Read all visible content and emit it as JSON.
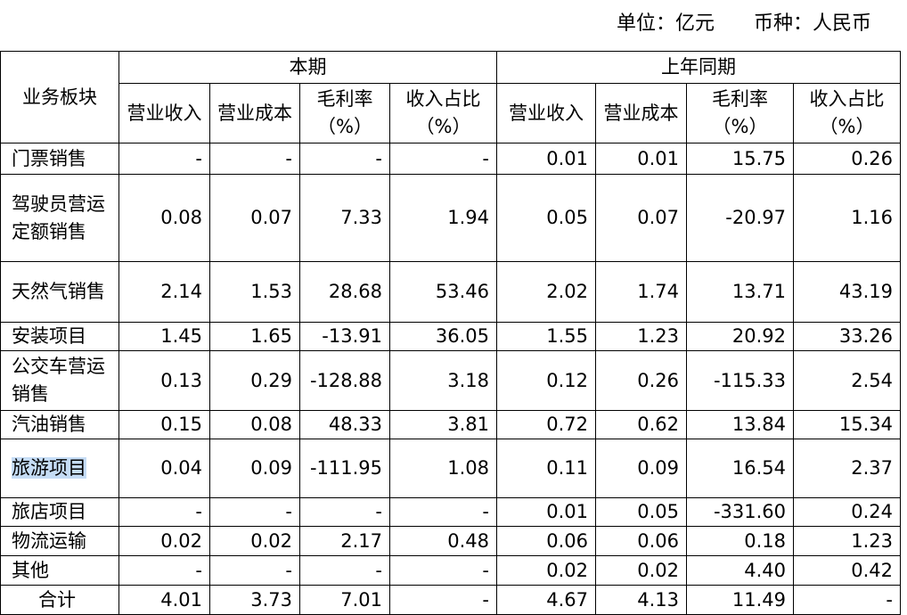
{
  "header": {
    "unit": "单位：亿元　　币种：人民币"
  },
  "table": {
    "corner": "业务板块",
    "groups": [
      {
        "name": "本期",
        "columns": [
          "营业收入",
          "营业成本",
          "毛利率（%）",
          "收入占比（%）"
        ]
      },
      {
        "name": "上年同期",
        "columns": [
          "营业收入",
          "营业成本",
          "毛利率（%）",
          "收入占比（%）"
        ]
      }
    ],
    "rows": [
      [
        "门票销售",
        "-",
        "-",
        "-",
        "-",
        "0.01",
        "0.01",
        "15.75",
        "0.26"
      ],
      [
        "驾驶员营运定额销售",
        "0.08",
        "0.07",
        "7.33",
        "1.94",
        "0.05",
        "0.07",
        "-20.97",
        "1.16"
      ],
      [
        "天然气销售",
        "2.14",
        "1.53",
        "28.68",
        "53.46",
        "2.02",
        "1.74",
        "13.71",
        "43.19"
      ],
      [
        "安装项目",
        "1.45",
        "1.65",
        "-13.91",
        "36.05",
        "1.55",
        "1.23",
        "20.92",
        "33.26"
      ],
      [
        "公交车营运销售",
        "0.13",
        "0.29",
        "-128.88",
        "3.18",
        "0.12",
        "0.26",
        "-115.33",
        "2.54"
      ],
      [
        "汽油销售",
        "0.15",
        "0.08",
        "48.33",
        "3.81",
        "0.72",
        "0.62",
        "13.84",
        "15.34"
      ],
      [
        "旅游项目",
        "0.04",
        "0.09",
        "-111.95",
        "1.08",
        "0.11",
        "0.09",
        "16.54",
        "2.37"
      ],
      [
        "旅店项目",
        "-",
        "-",
        "-",
        "-",
        "0.01",
        "0.05",
        "-331.60",
        "0.24"
      ],
      [
        "物流运输",
        "0.02",
        "0.02",
        "2.17",
        "0.48",
        "0.06",
        "0.06",
        "0.18",
        "1.23"
      ],
      [
        "其他",
        "-",
        "-",
        "-",
        "-",
        "0.02",
        "0.02",
        "4.40",
        "0.42"
      ],
      [
        "合计",
        "4.01",
        "3.73",
        "7.01",
        "-",
        "4.67",
        "4.13",
        "11.49",
        "-"
      ]
    ]
  }
}
